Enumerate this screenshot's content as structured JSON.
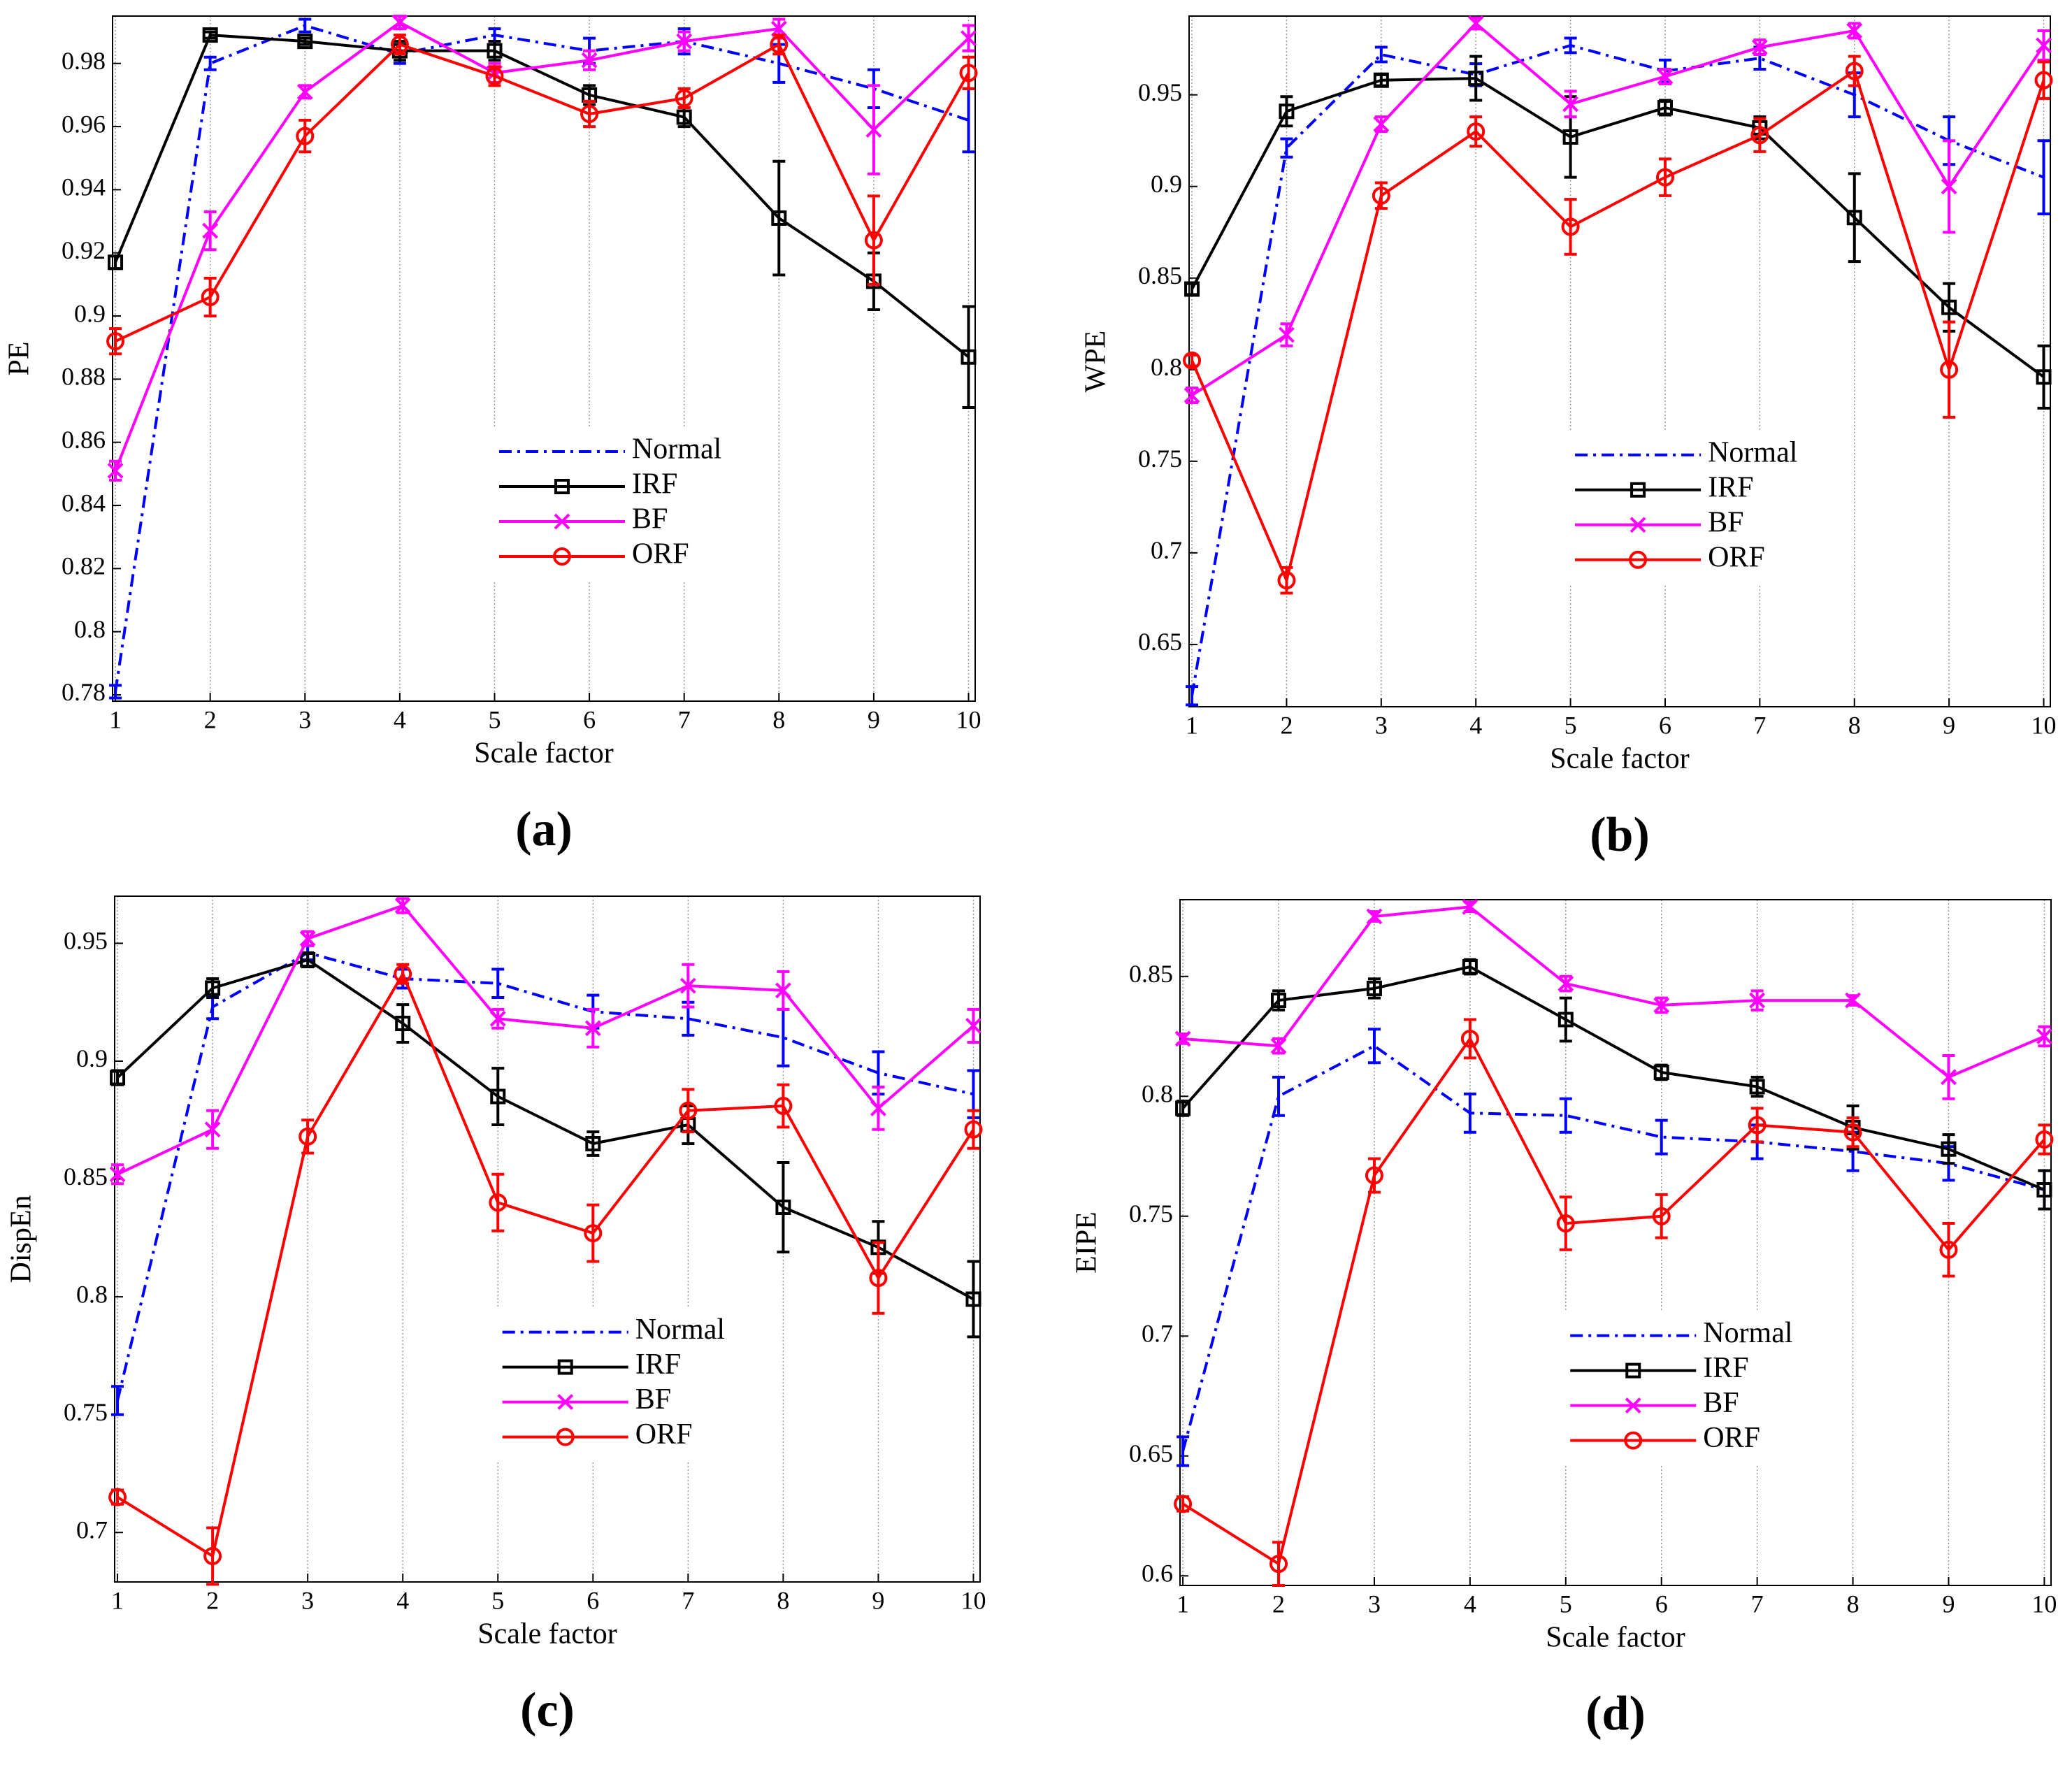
{
  "chart_data": [
    {
      "type": "line",
      "caption": "(a)",
      "xlabel": "Scale factor",
      "ylabel": "PE",
      "x": [
        1,
        2,
        3,
        4,
        5,
        6,
        7,
        8,
        9,
        10
      ],
      "xlim": [
        0.97,
        10.07
      ],
      "xticks": [
        1,
        2,
        3,
        4,
        5,
        6,
        7,
        8,
        9,
        10
      ],
      "ylim": [
        0.778,
        0.995
      ],
      "yticks": [
        0.78,
        0.8,
        0.82,
        0.84,
        0.86,
        0.88,
        0.9,
        0.92,
        0.94,
        0.96,
        0.98
      ],
      "grid": true,
      "legend": "center right",
      "series": [
        {
          "name": "Normal",
          "color": "#0000ff",
          "linestyle": "dashdot",
          "marker": "none",
          "values": [
            0.781,
            0.98,
            0.992,
            0.983,
            0.989,
            0.984,
            0.987,
            0.98,
            0.972,
            0.962
          ],
          "errors": [
            0.002,
            0.002,
            0.002,
            0.003,
            0.002,
            0.004,
            0.004,
            0.006,
            0.006,
            0.01
          ]
        },
        {
          "name": "IRF",
          "color": "#000000",
          "linestyle": "solid",
          "marker": "square",
          "values": [
            0.917,
            0.989,
            0.987,
            0.984,
            0.984,
            0.97,
            0.963,
            0.931,
            0.911,
            0.887
          ],
          "errors": [
            0.002,
            0.001,
            0.001,
            0.003,
            0.003,
            0.003,
            0.003,
            0.018,
            0.009,
            0.016
          ]
        },
        {
          "name": "BF",
          "color": "#ff00ff",
          "linestyle": "solid",
          "marker": "x",
          "values": [
            0.851,
            0.927,
            0.971,
            0.993,
            0.977,
            0.981,
            0.987,
            0.991,
            0.959,
            0.988
          ],
          "errors": [
            0.003,
            0.006,
            0.002,
            0.002,
            0.003,
            0.003,
            0.003,
            0.003,
            0.014,
            0.004
          ]
        },
        {
          "name": "ORF",
          "color": "#ff0000",
          "linestyle": "solid",
          "marker": "circle",
          "values": [
            0.892,
            0.906,
            0.957,
            0.986,
            0.976,
            0.964,
            0.969,
            0.986,
            0.924,
            0.977
          ],
          "errors": [
            0.004,
            0.006,
            0.005,
            0.003,
            0.003,
            0.004,
            0.003,
            0.003,
            0.014,
            0.005
          ]
        }
      ]
    },
    {
      "type": "line",
      "caption": "(b)",
      "xlabel": "Scale factor",
      "ylabel": "WPE",
      "x": [
        1,
        2,
        3,
        4,
        5,
        6,
        7,
        8,
        9,
        10
      ],
      "xlim": [
        0.97,
        10.07
      ],
      "xticks": [
        1,
        2,
        3,
        4,
        5,
        6,
        7,
        8,
        9,
        10
      ],
      "ylim": [
        0.616,
        0.993
      ],
      "yticks": [
        0.65,
        0.7,
        0.75,
        0.8,
        0.85,
        0.9,
        0.95
      ],
      "grid": true,
      "legend": "center right",
      "series": [
        {
          "name": "Normal",
          "color": "#0000ff",
          "linestyle": "dashdot",
          "marker": "none",
          "values": [
            0.622,
            0.921,
            0.972,
            0.961,
            0.977,
            0.963,
            0.97,
            0.95,
            0.925,
            0.905
          ],
          "errors": [
            0.005,
            0.005,
            0.004,
            0.006,
            0.004,
            0.006,
            0.006,
            0.012,
            0.013,
            0.02
          ]
        },
        {
          "name": "IRF",
          "color": "#000000",
          "linestyle": "solid",
          "marker": "square",
          "values": [
            0.844,
            0.941,
            0.958,
            0.959,
            0.927,
            0.943,
            0.932,
            0.883,
            0.834,
            0.796
          ],
          "errors": [
            0.003,
            0.008,
            0.003,
            0.012,
            0.022,
            0.004,
            0.006,
            0.024,
            0.013,
            0.017
          ]
        },
        {
          "name": "BF",
          "color": "#ff00ff",
          "linestyle": "solid",
          "marker": "x",
          "values": [
            0.786,
            0.819,
            0.934,
            0.989,
            0.945,
            0.96,
            0.976,
            0.985,
            0.9,
            0.977
          ],
          "errors": [
            0.004,
            0.006,
            0.004,
            0.003,
            0.007,
            0.004,
            0.004,
            0.004,
            0.025,
            0.008
          ]
        },
        {
          "name": "ORF",
          "color": "#ff0000",
          "linestyle": "solid",
          "marker": "circle",
          "values": [
            0.805,
            0.685,
            0.895,
            0.93,
            0.878,
            0.905,
            0.928,
            0.963,
            0.8,
            0.958
          ],
          "errors": [
            0.003,
            0.007,
            0.007,
            0.008,
            0.015,
            0.01,
            0.009,
            0.008,
            0.026,
            0.01
          ]
        }
      ]
    },
    {
      "type": "line",
      "caption": "(c)",
      "xlabel": "Scale factor",
      "ylabel": "DispEn",
      "x": [
        1,
        2,
        3,
        4,
        5,
        6,
        7,
        8,
        9,
        10
      ],
      "xlim": [
        0.97,
        10.07
      ],
      "xticks": [
        1,
        2,
        3,
        4,
        5,
        6,
        7,
        8,
        9,
        10
      ],
      "ylim": [
        0.679,
        0.97
      ],
      "yticks": [
        0.7,
        0.75,
        0.8,
        0.85,
        0.9,
        0.95
      ],
      "grid": true,
      "legend": "center right",
      "series": [
        {
          "name": "Normal",
          "color": "#0000ff",
          "linestyle": "dashdot",
          "marker": "none",
          "values": [
            0.756,
            0.923,
            0.946,
            0.935,
            0.933,
            0.921,
            0.918,
            0.91,
            0.895,
            0.886
          ],
          "errors": [
            0.006,
            0.005,
            0.003,
            0.004,
            0.006,
            0.007,
            0.007,
            0.012,
            0.009,
            0.01
          ]
        },
        {
          "name": "IRF",
          "color": "#000000",
          "linestyle": "solid",
          "marker": "square",
          "values": [
            0.893,
            0.931,
            0.943,
            0.916,
            0.885,
            0.865,
            0.873,
            0.838,
            0.821,
            0.799
          ],
          "errors": [
            0.003,
            0.004,
            0.003,
            0.008,
            0.012,
            0.005,
            0.008,
            0.019,
            0.011,
            0.016
          ]
        },
        {
          "name": "BF",
          "color": "#ff00ff",
          "linestyle": "solid",
          "marker": "x",
          "values": [
            0.852,
            0.871,
            0.952,
            0.966,
            0.918,
            0.914,
            0.932,
            0.93,
            0.88,
            0.915
          ],
          "errors": [
            0.004,
            0.008,
            0.003,
            0.003,
            0.004,
            0.008,
            0.009,
            0.008,
            0.009,
            0.007
          ]
        },
        {
          "name": "ORF",
          "color": "#ff0000",
          "linestyle": "solid",
          "marker": "circle",
          "values": [
            0.715,
            0.69,
            0.868,
            0.937,
            0.84,
            0.827,
            0.879,
            0.881,
            0.808,
            0.871
          ],
          "errors": [
            0.003,
            0.012,
            0.007,
            0.004,
            0.012,
            0.012,
            0.009,
            0.009,
            0.015,
            0.008
          ]
        }
      ]
    },
    {
      "type": "line",
      "caption": "(d)",
      "xlabel": "Scale factor",
      "ylabel": "EIPE",
      "x": [
        1,
        2,
        3,
        4,
        5,
        6,
        7,
        8,
        9,
        10
      ],
      "xlim": [
        0.97,
        10.07
      ],
      "xticks": [
        1,
        2,
        3,
        4,
        5,
        6,
        7,
        8,
        9,
        10
      ],
      "ylim": [
        0.596,
        0.882
      ],
      "yticks": [
        0.6,
        0.65,
        0.7,
        0.75,
        0.8,
        0.85
      ],
      "grid": true,
      "legend": "center right",
      "series": [
        {
          "name": "Normal",
          "color": "#0000ff",
          "linestyle": "dashdot",
          "marker": "none",
          "values": [
            0.652,
            0.8,
            0.821,
            0.793,
            0.792,
            0.783,
            0.781,
            0.777,
            0.772,
            0.761
          ],
          "errors": [
            0.006,
            0.008,
            0.007,
            0.008,
            0.007,
            0.007,
            0.007,
            0.008,
            0.007,
            0.008
          ]
        },
        {
          "name": "IRF",
          "color": "#000000",
          "linestyle": "solid",
          "marker": "square",
          "values": [
            0.795,
            0.84,
            0.845,
            0.854,
            0.832,
            0.81,
            0.804,
            0.787,
            0.778,
            0.761
          ],
          "errors": [
            0.003,
            0.004,
            0.004,
            0.003,
            0.009,
            0.003,
            0.004,
            0.009,
            0.006,
            0.008
          ]
        },
        {
          "name": "BF",
          "color": "#ff00ff",
          "linestyle": "solid",
          "marker": "x",
          "values": [
            0.824,
            0.821,
            0.875,
            0.879,
            0.847,
            0.838,
            0.84,
            0.84,
            0.808,
            0.825
          ],
          "errors": [
            0.002,
            0.003,
            0.002,
            0.002,
            0.003,
            0.003,
            0.004,
            0.002,
            0.009,
            0.004
          ]
        },
        {
          "name": "ORF",
          "color": "#ff0000",
          "linestyle": "solid",
          "marker": "circle",
          "values": [
            0.63,
            0.605,
            0.767,
            0.824,
            0.747,
            0.75,
            0.788,
            0.785,
            0.736,
            0.782
          ],
          "errors": [
            0.003,
            0.009,
            0.007,
            0.008,
            0.011,
            0.009,
            0.007,
            0.006,
            0.011,
            0.006
          ]
        }
      ]
    }
  ]
}
